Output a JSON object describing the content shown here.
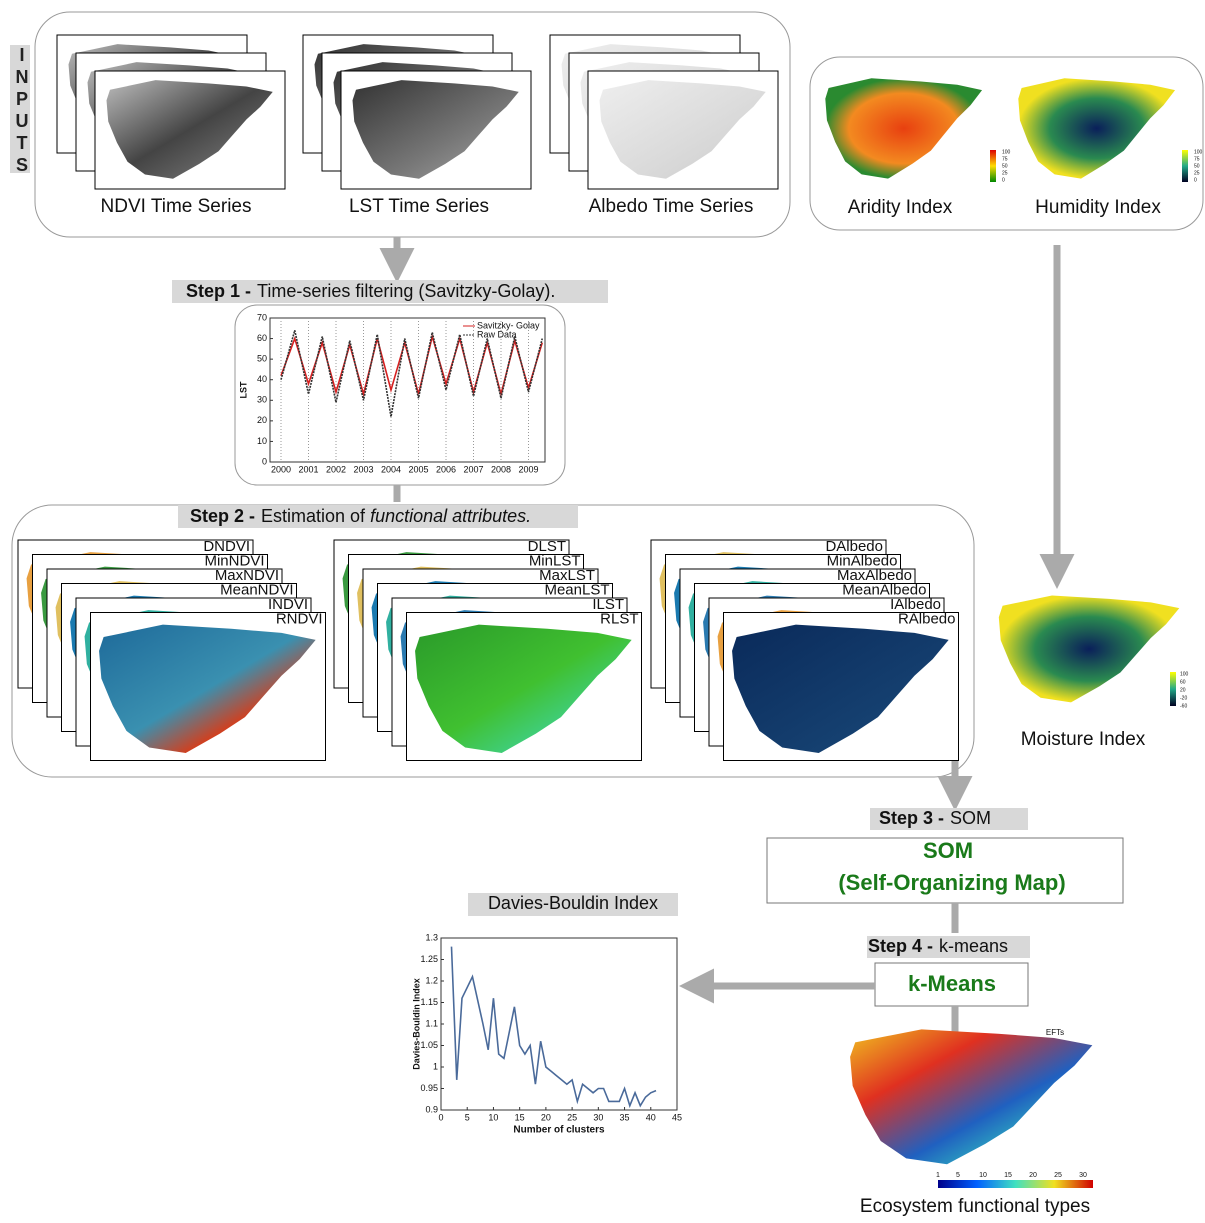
{
  "inputs": "INPUTS",
  "input_series": [
    "NDVI Time Series",
    "LST Time Series",
    "Albedo Time Series"
  ],
  "indices": [
    {
      "label": "Aridity Index",
      "colorbar": [
        100,
        75,
        50,
        25,
        0
      ]
    },
    {
      "label": "Humidity Index",
      "colorbar": [
        100,
        75,
        50,
        25,
        0
      ]
    }
  ],
  "moisture": {
    "label": "Moisture Index",
    "colorbar": [
      100,
      60,
      20,
      -20,
      -60
    ]
  },
  "step1": {
    "label": "Step 1 -",
    "text": "Time-series filtering (Savitzky-Golay)."
  },
  "lst_chart": {
    "ylabel": "LST",
    "xlim": [
      1999.6,
      2009.6
    ],
    "xticks": [
      2000,
      2001,
      2002,
      2003,
      2004,
      2005,
      2006,
      2007,
      2008,
      2009
    ],
    "ylim": [
      0,
      70
    ],
    "yticks": [
      0,
      10,
      20,
      30,
      40,
      50,
      60,
      70
    ],
    "x": [
      2000,
      2000.5,
      2001,
      2001.5,
      2002,
      2002.5,
      2003,
      2003.5,
      2004,
      2004.5,
      2005,
      2005.5,
      2006,
      2006.5,
      2007,
      2007.5,
      2008,
      2008.5,
      2009,
      2009.5
    ],
    "series": [
      {
        "name": "Savitzky- Golay",
        "color": "#d62020",
        "values": [
          42,
          60,
          38,
          58,
          34,
          57,
          33,
          60,
          35,
          58,
          33,
          61,
          38,
          60,
          34,
          58,
          33,
          59,
          36,
          58
        ]
      },
      {
        "name": "Raw Data",
        "color": "#333333",
        "values": [
          40,
          64,
          33,
          61,
          29,
          59,
          30,
          62,
          22,
          60,
          31,
          63,
          35,
          62,
          32,
          60,
          31,
          61,
          34,
          60
        ]
      }
    ]
  },
  "step2": {
    "label": "Step 2 -",
    "text": "Estimation of ",
    "emph": "functional attributes."
  },
  "attributes": [
    [
      "DNDVI",
      "MinNDVI",
      "MaxNDVI",
      "MeanNDVI",
      "INDVI",
      "RNDVI"
    ],
    [
      "DLST",
      "MinLST",
      "MaxLST",
      "MeanLST",
      "ILST",
      "RLST"
    ],
    [
      "DAlbedo",
      "MinAlbedo",
      "MaxAlbedo",
      "MeanAlbedo",
      "IAlbedo",
      "RAlbedo"
    ]
  ],
  "step3": {
    "label": "Step 3 -",
    "text": "SOM"
  },
  "som": [
    "SOM",
    "(Self-Organizing Map)"
  ],
  "step4": {
    "label": "Step 4 -",
    "text": "k-means"
  },
  "kmeans": "k-Means",
  "db_title": "Davies-Bouldin Index",
  "db_chart": {
    "ylabel": "Davies-Bouldin Index",
    "xlabel": "Number of clusters",
    "xlim": [
      0,
      45
    ],
    "xticks": [
      0,
      5,
      10,
      15,
      20,
      25,
      30,
      35,
      40,
      45
    ],
    "ylim": [
      0.9,
      1.3
    ],
    "yticks": [
      0.9,
      0.95,
      1,
      1.05,
      1.1,
      1.15,
      1.2,
      1.25,
      1.3
    ],
    "color": "#4a6a9a",
    "x": [
      2,
      3,
      4,
      6,
      8,
      9,
      10,
      11,
      12,
      13,
      14,
      15,
      16,
      17,
      18,
      19,
      20,
      21,
      22,
      23,
      24,
      25,
      26,
      27,
      28,
      29,
      30,
      31,
      32,
      33,
      34,
      35,
      36,
      37,
      38,
      39,
      40,
      41
    ],
    "values": [
      1.28,
      0.97,
      1.16,
      1.21,
      1.1,
      1.04,
      1.16,
      1.03,
      1.02,
      1.08,
      1.14,
      1.05,
      1.03,
      1.05,
      0.96,
      1.06,
      1.0,
      0.99,
      0.98,
      0.97,
      0.96,
      0.97,
      0.92,
      0.96,
      0.95,
      0.94,
      0.95,
      0.95,
      0.92,
      0.92,
      0.92,
      0.95,
      0.91,
      0.94,
      0.91,
      0.93,
      0.94,
      0.945
    ]
  },
  "eft": {
    "title": "EFTs",
    "ticks": [
      1,
      5,
      10,
      15,
      20,
      25,
      30
    ],
    "caption": "Ecosystem functional types"
  }
}
